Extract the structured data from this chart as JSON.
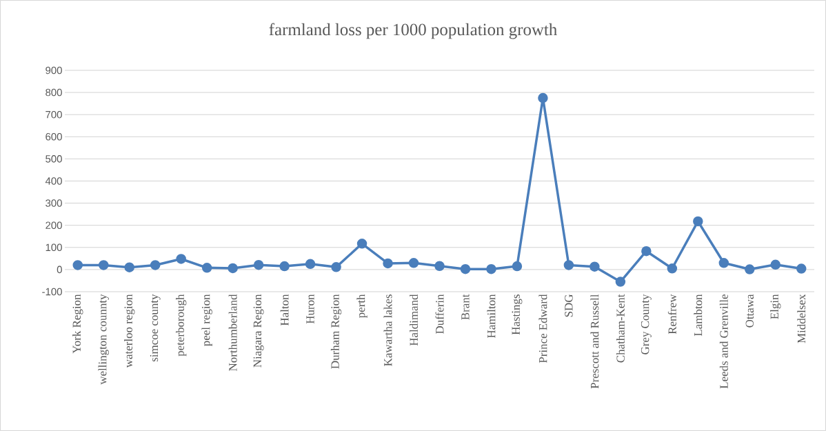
{
  "chart_data": {
    "type": "line",
    "title": "farmland loss per 1000 population growth",
    "categories": [
      "York Region",
      "wellington counnty",
      "waterloo region",
      "simcoe county",
      "peterborough",
      "peel region",
      "Northumberland",
      "Niagara Region",
      "Halton",
      "Huron",
      "Durham Region",
      "perth",
      "Kawartha lakes",
      "Haldimand",
      "Dufferin",
      "Brant",
      "Hamilton",
      "Hastings",
      "Prince Edward",
      "SDG",
      "Prescott and Russell",
      "Chatham-Kent",
      "Grey County",
      "Renfrew",
      "Lambton",
      "Leeds and Grenville",
      "Ottawa",
      "Elgin",
      "Middelsex"
    ],
    "values": [
      20,
      20,
      10,
      20,
      48,
      8,
      6,
      21,
      15,
      25,
      11,
      117,
      28,
      30,
      16,
      2,
      2,
      15,
      775,
      20,
      13,
      -55,
      83,
      5,
      218,
      30,
      1,
      22,
      4
    ],
    "color": "#4a7ebb",
    "marker": "circle",
    "line_style": "solid",
    "ylim": [
      -100,
      900
    ],
    "yticks": [
      -100,
      0,
      100,
      200,
      300,
      400,
      500,
      600,
      700,
      800,
      900
    ],
    "grid": "y"
  }
}
